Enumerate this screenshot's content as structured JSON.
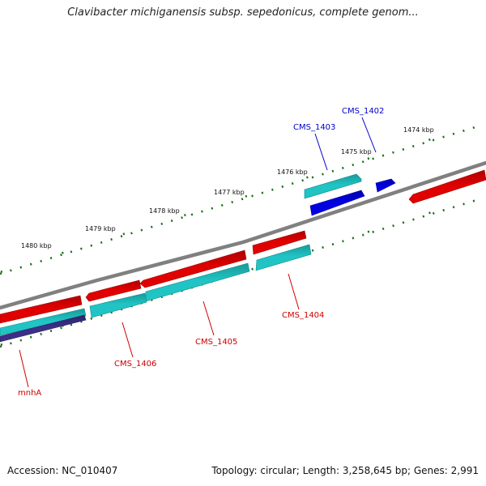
{
  "title": "Clavibacter michiganensis subsp. sepedonicus, complete genom...",
  "footer": {
    "accession": "Accession: NC_010407",
    "summary": "Topology: circular; Length: 3,258,645 bp; Genes: 2,991"
  },
  "colors": {
    "backbone": "#808080",
    "tick": "#1a6e1a",
    "gene_red": "#e00000",
    "gene_cyan": "#20c4c4",
    "gene_blue": "#0000e0",
    "gene_purple": "#3b2f86",
    "label_blue": "#0000cc",
    "label_red": "#cc0000"
  },
  "kbp_labels": [
    "1474 kbp",
    "1475 kbp",
    "1476 kbp",
    "1477 kbp",
    "1478 kbp",
    "1479 kbp",
    "1480 kbp"
  ],
  "gene_labels": [
    {
      "name": "CMS_1402",
      "color": "blue"
    },
    {
      "name": "CMS_1403",
      "color": "blue"
    },
    {
      "name": "CMS_1404",
      "color": "red"
    },
    {
      "name": "CMS_1405",
      "color": "red"
    },
    {
      "name": "CMS_1406",
      "color": "red"
    },
    {
      "name": "mnhA",
      "color": "red"
    }
  ]
}
